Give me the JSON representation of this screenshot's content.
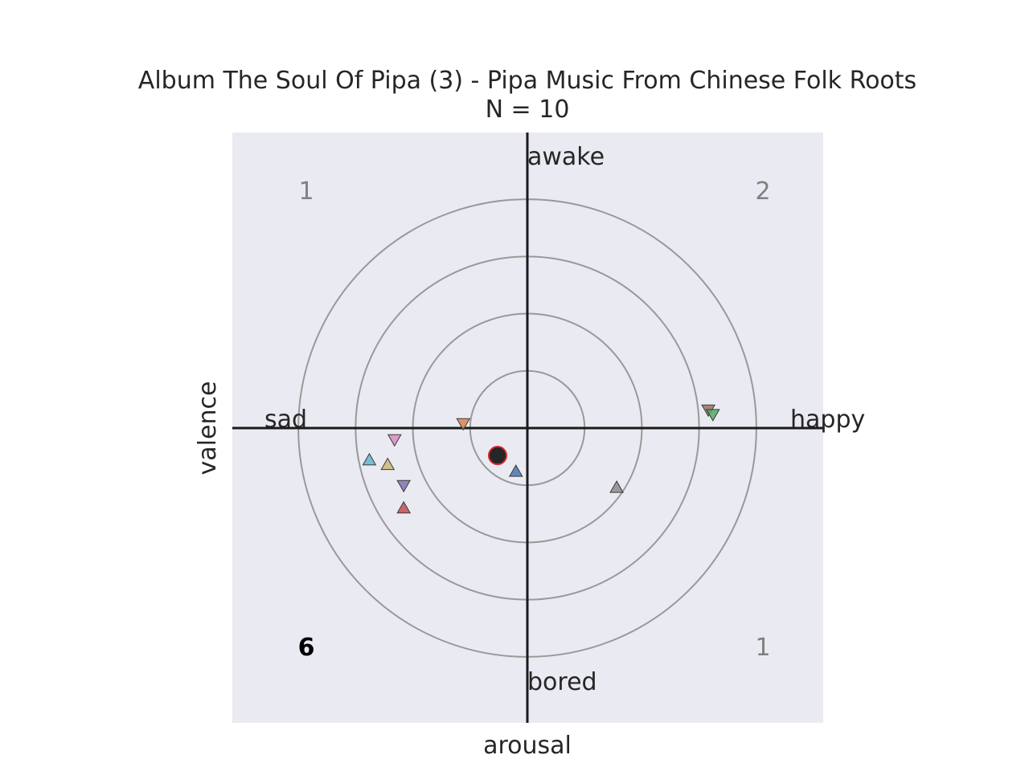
{
  "chart_data": {
    "type": "scatter",
    "title": "Album The Soul Of Pipa (3) - Pipa Music From Chinese Folk Roots",
    "subtitle": "N = 10",
    "xlabel": "arousal",
    "ylabel": "valence",
    "xlim": [
      -1.29,
      1.29
    ],
    "ylim": [
      -1.29,
      1.29
    ],
    "grid": false,
    "background": "#eaeaf2",
    "circle_radii": [
      0.25,
      0.5,
      0.75,
      1.0
    ],
    "pole_labels": {
      "top": "awake",
      "bottom": "bored",
      "left": "sad",
      "right": "happy"
    },
    "quadrant_counts": {
      "top_left": "1",
      "top_right": "2",
      "bottom_left": "6",
      "bottom_right": "1",
      "highlight": "bottom_left"
    },
    "mean_point": {
      "x": -0.13,
      "y": -0.12,
      "color": "#262626",
      "edge": "#d62728"
    },
    "points": [
      {
        "x": -0.28,
        "y": 0.02,
        "marker": "down",
        "color": "#dd8452"
      },
      {
        "x": -0.58,
        "y": -0.05,
        "marker": "down",
        "color": "#da8bc3"
      },
      {
        "x": -0.69,
        "y": -0.14,
        "marker": "up",
        "color": "#64b5cd"
      },
      {
        "x": -0.61,
        "y": -0.16,
        "marker": "up",
        "color": "#ccb974"
      },
      {
        "x": -0.54,
        "y": -0.25,
        "marker": "down",
        "color": "#8172b3"
      },
      {
        "x": -0.54,
        "y": -0.35,
        "marker": "up",
        "color": "#c44e52"
      },
      {
        "x": -0.05,
        "y": -0.19,
        "marker": "up",
        "color": "#4c72b0"
      },
      {
        "x": 0.39,
        "y": -0.26,
        "marker": "up",
        "color": "#8c8c8c"
      },
      {
        "x": 0.79,
        "y": 0.08,
        "marker": "down",
        "color": "#937860"
      },
      {
        "x": 0.81,
        "y": 0.06,
        "marker": "down",
        "color": "#55a868"
      }
    ]
  }
}
